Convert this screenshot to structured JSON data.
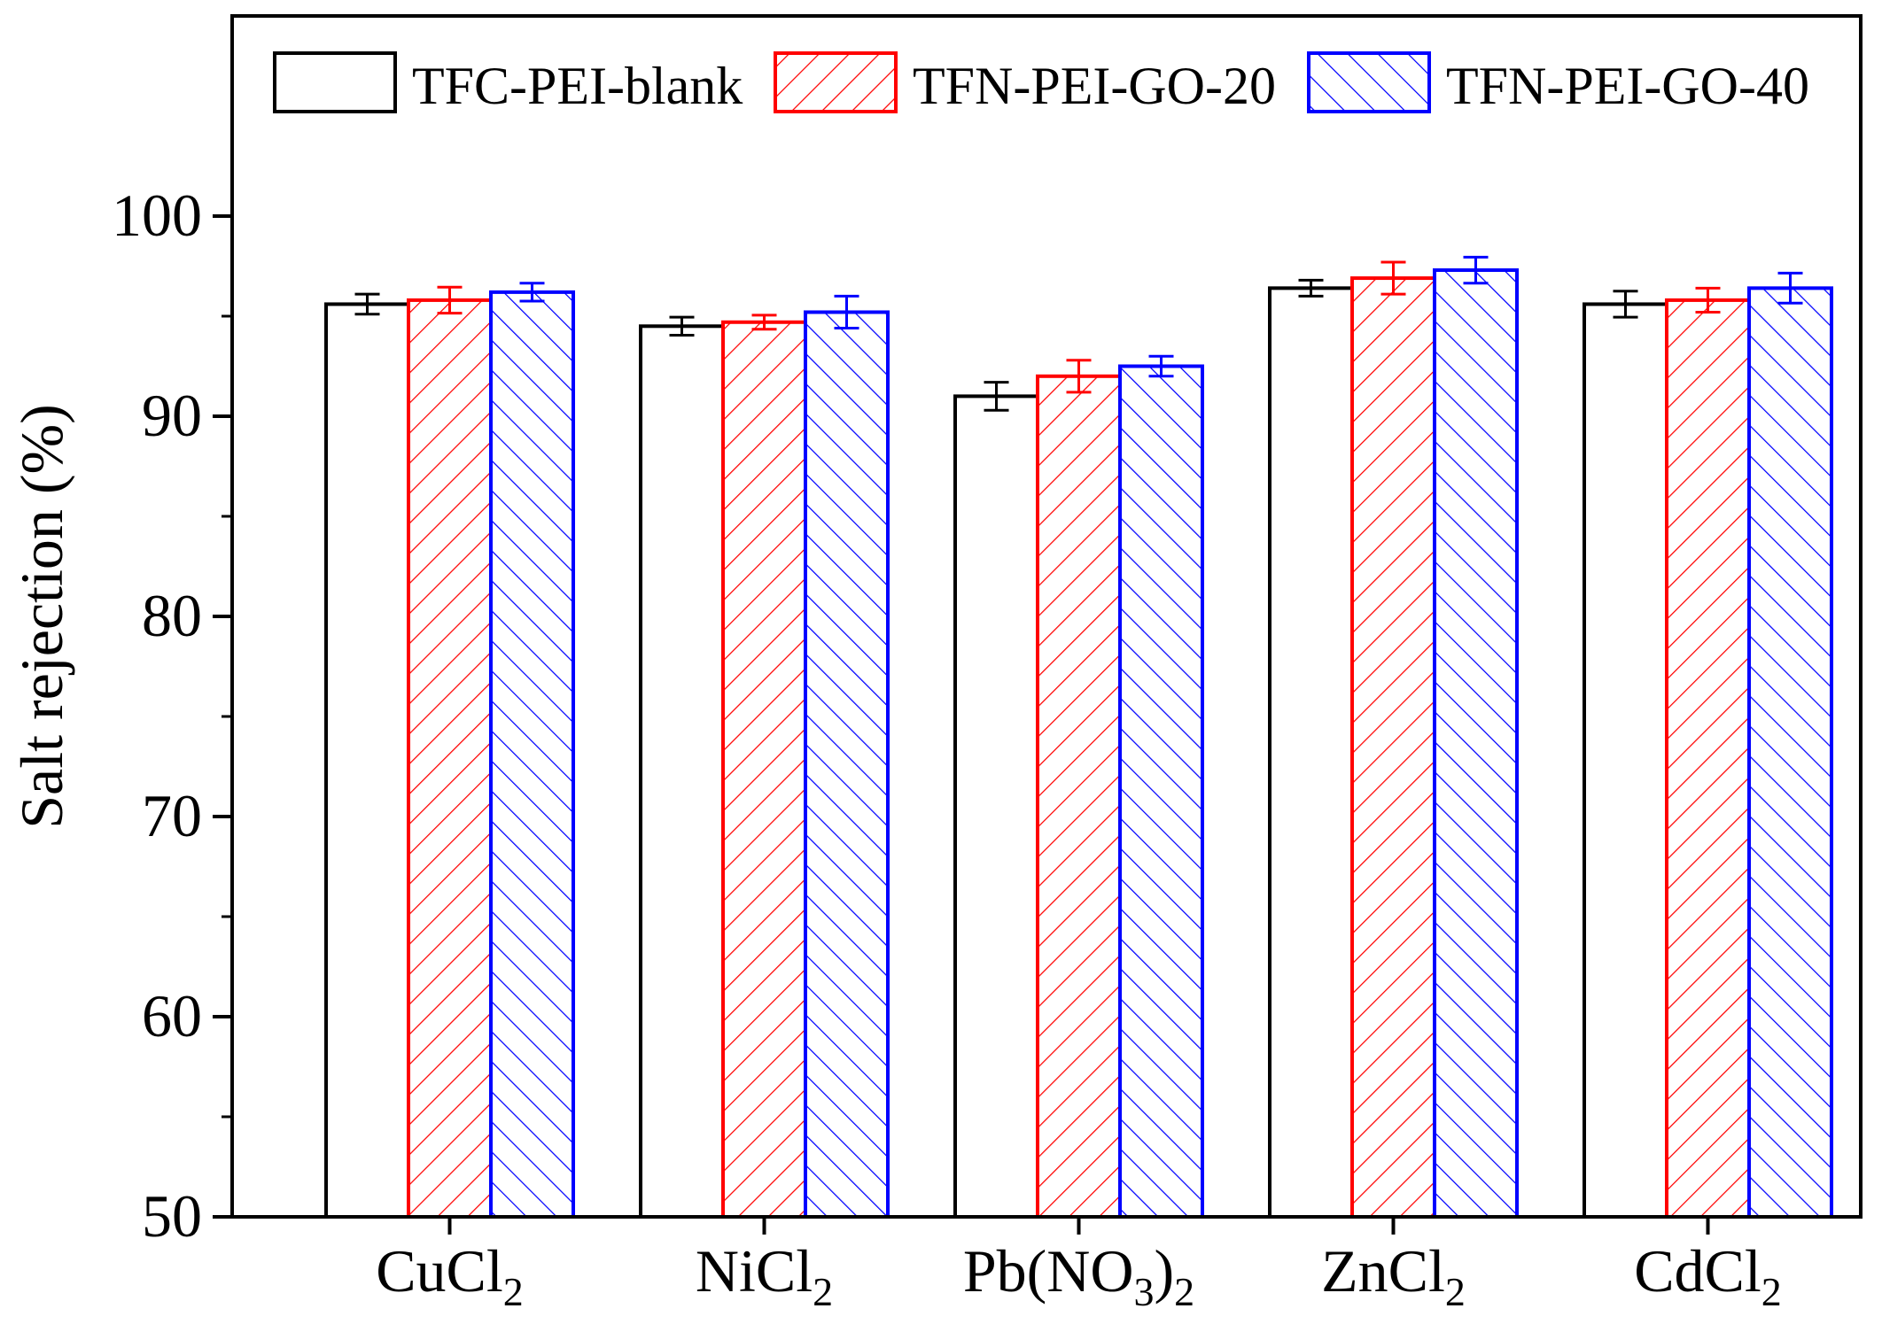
{
  "chart_data": {
    "type": "bar",
    "title": "",
    "xlabel": "",
    "ylabel": "Salt rejection (%)",
    "ylim": [
      50,
      110
    ],
    "yticks": [
      50,
      60,
      70,
      80,
      90,
      100
    ],
    "categories": [
      {
        "main": "CuCl",
        "sub": "2",
        "tail": ""
      },
      {
        "main": "NiCl",
        "sub": "2",
        "tail": ""
      },
      {
        "main": "Pb(NO",
        "sub": "3",
        "tail": ")",
        "sub2": "2"
      },
      {
        "main": "ZnCl",
        "sub": "2",
        "tail": ""
      },
      {
        "main": "CdCl",
        "sub": "2",
        "tail": ""
      }
    ],
    "series": [
      {
        "name": "TFC-PEI-blank",
        "color": "#000000",
        "pattern": "none",
        "values": [
          95.6,
          94.5,
          91.0,
          96.4,
          95.6
        ],
        "errors": [
          0.5,
          0.45,
          0.7,
          0.4,
          0.65
        ]
      },
      {
        "name": "TFN-PEI-GO-20",
        "color": "#ff0000",
        "pattern": "forward-hatch",
        "values": [
          95.8,
          94.7,
          92.0,
          96.9,
          95.8
        ],
        "errors": [
          0.65,
          0.35,
          0.8,
          0.8,
          0.6
        ]
      },
      {
        "name": "TFN-PEI-GO-40",
        "color": "#0000ff",
        "pattern": "back-hatch",
        "values": [
          96.2,
          95.2,
          92.5,
          97.3,
          96.4
        ],
        "errors": [
          0.45,
          0.8,
          0.5,
          0.65,
          0.75
        ]
      }
    ],
    "legend_position": "top"
  }
}
